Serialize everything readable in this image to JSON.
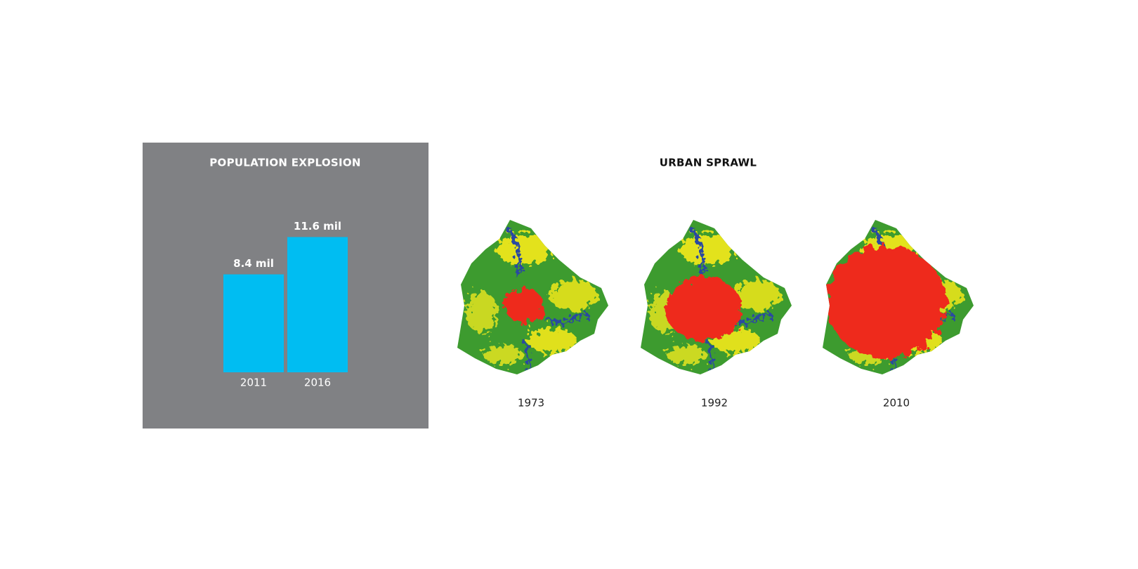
{
  "chart_data": {
    "type": "bar",
    "title": "POPULATION EXPLOSION",
    "categories": [
      "2011",
      "2016"
    ],
    "values": [
      8.4,
      11.6
    ],
    "value_labels": [
      "8.4 mil",
      "11.6 mil"
    ],
    "color": "#00bdf2"
  },
  "urban_sprawl": {
    "title": "URBAN SPRAWL",
    "maps": [
      {
        "year": "1973"
      },
      {
        "year": "1992"
      },
      {
        "year": "2010"
      }
    ]
  }
}
